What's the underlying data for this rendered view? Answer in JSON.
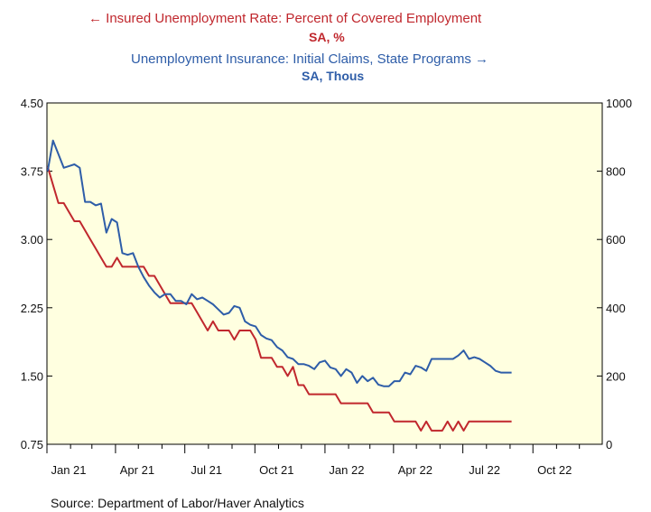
{
  "chart_data": {
    "type": "line",
    "legend": [
      {
        "label": "Insured Unemployment Rate: Percent of Covered Employment",
        "units": "SA, %",
        "axis": "left",
        "arrow": "left",
        "color": "#c0272d"
      },
      {
        "label": "Unemployment Insurance: Initial Claims, State Programs",
        "units": "SA, Thous",
        "axis": "right",
        "arrow": "right",
        "color": "#2e5da8"
      }
    ],
    "x_ticks": [
      "Jan 21",
      "Apr 21",
      "Jul 21",
      "Oct 21",
      "Jan 22",
      "Apr 22",
      "Jul 22",
      "Oct 22"
    ],
    "x_tick_dates": [
      "2021-01-01",
      "2021-04-01",
      "2021-07-01",
      "2021-10-01",
      "2022-01-01",
      "2022-04-01",
      "2022-07-01",
      "2022-10-01"
    ],
    "xlim": [
      "2021-01-01",
      "2022-12-31"
    ],
    "y_left": {
      "min": 0.75,
      "max": 4.5,
      "ticks": [
        "0.75",
        "1.50",
        "2.25",
        "3.00",
        "3.75",
        "4.50"
      ]
    },
    "y_right": {
      "min": 0,
      "max": 1000,
      "ticks": [
        "0",
        "200",
        "400",
        "600",
        "800",
        "1000"
      ]
    },
    "background": "#ffffe0",
    "grid": false,
    "series": [
      {
        "name": "Insured Unemployment Rate: Percent of Covered Employment",
        "axis": "left",
        "color": "#c0272d",
        "x": [
          "2021-01-02",
          "2021-01-09",
          "2021-01-16",
          "2021-01-23",
          "2021-01-30",
          "2021-02-06",
          "2021-02-13",
          "2021-02-20",
          "2021-02-27",
          "2021-03-06",
          "2021-03-13",
          "2021-03-20",
          "2021-03-27",
          "2021-04-03",
          "2021-04-10",
          "2021-04-17",
          "2021-04-24",
          "2021-05-01",
          "2021-05-08",
          "2021-05-15",
          "2021-05-22",
          "2021-05-29",
          "2021-06-05",
          "2021-06-12",
          "2021-06-19",
          "2021-06-26",
          "2021-07-03",
          "2021-07-10",
          "2021-07-17",
          "2021-07-24",
          "2021-07-31",
          "2021-08-07",
          "2021-08-14",
          "2021-08-21",
          "2021-08-28",
          "2021-09-04",
          "2021-09-11",
          "2021-09-18",
          "2021-09-25",
          "2021-10-02",
          "2021-10-09",
          "2021-10-16",
          "2021-10-23",
          "2021-10-30",
          "2021-11-06",
          "2021-11-13",
          "2021-11-20",
          "2021-11-27",
          "2021-12-04",
          "2021-12-11",
          "2021-12-18",
          "2021-12-25",
          "2022-01-01",
          "2022-01-08",
          "2022-01-15",
          "2022-01-22",
          "2022-01-29",
          "2022-02-05",
          "2022-02-12",
          "2022-02-19",
          "2022-02-26",
          "2022-03-05",
          "2022-03-12",
          "2022-03-19",
          "2022-03-26",
          "2022-04-02",
          "2022-04-09",
          "2022-04-16",
          "2022-04-23",
          "2022-04-30",
          "2022-05-07",
          "2022-05-14",
          "2022-05-21",
          "2022-05-28",
          "2022-06-04",
          "2022-06-11",
          "2022-06-18",
          "2022-06-25",
          "2022-07-02",
          "2022-07-09",
          "2022-07-16",
          "2022-07-23",
          "2022-07-30",
          "2022-08-06",
          "2022-08-13",
          "2022-08-20",
          "2022-08-27",
          "2022-09-03"
        ],
        "y": [
          3.8,
          3.6,
          3.4,
          3.4,
          3.3,
          3.2,
          3.2,
          3.1,
          3.0,
          2.9,
          2.8,
          2.7,
          2.7,
          2.8,
          2.7,
          2.7,
          2.7,
          2.7,
          2.7,
          2.6,
          2.6,
          2.5,
          2.4,
          2.3,
          2.3,
          2.3,
          2.3,
          2.3,
          2.2,
          2.1,
          2.0,
          2.1,
          2.0,
          2.0,
          2.0,
          1.9,
          2.0,
          2.0,
          2.0,
          1.9,
          1.7,
          1.7,
          1.7,
          1.6,
          1.6,
          1.5,
          1.6,
          1.4,
          1.4,
          1.3,
          1.3,
          1.3,
          1.3,
          1.3,
          1.3,
          1.2,
          1.2,
          1.2,
          1.2,
          1.2,
          1.2,
          1.1,
          1.1,
          1.1,
          1.1,
          1.0,
          1.0,
          1.0,
          1.0,
          1.0,
          0.9,
          1.0,
          0.9,
          0.9,
          0.9,
          1.0,
          0.9,
          1.0,
          0.9,
          1.0,
          1.0,
          1.0,
          1.0,
          1.0,
          1.0,
          1.0,
          1.0,
          1.0
        ]
      },
      {
        "name": "Unemployment Insurance: Initial Claims, State Programs",
        "axis": "right",
        "color": "#2e5da8",
        "x": [
          "2021-01-02",
          "2021-01-09",
          "2021-01-16",
          "2021-01-23",
          "2021-01-30",
          "2021-02-06",
          "2021-02-13",
          "2021-02-20",
          "2021-02-27",
          "2021-03-06",
          "2021-03-13",
          "2021-03-20",
          "2021-03-27",
          "2021-04-03",
          "2021-04-10",
          "2021-04-17",
          "2021-04-24",
          "2021-05-01",
          "2021-05-08",
          "2021-05-15",
          "2021-05-22",
          "2021-05-29",
          "2021-06-05",
          "2021-06-12",
          "2021-06-19",
          "2021-06-26",
          "2021-07-03",
          "2021-07-10",
          "2021-07-17",
          "2021-07-24",
          "2021-07-31",
          "2021-08-07",
          "2021-08-14",
          "2021-08-21",
          "2021-08-28",
          "2021-09-04",
          "2021-09-11",
          "2021-09-18",
          "2021-09-25",
          "2021-10-02",
          "2021-10-09",
          "2021-10-16",
          "2021-10-23",
          "2021-10-30",
          "2021-11-06",
          "2021-11-13",
          "2021-11-20",
          "2021-11-27",
          "2021-12-04",
          "2021-12-11",
          "2021-12-18",
          "2021-12-25",
          "2022-01-01",
          "2022-01-08",
          "2022-01-15",
          "2022-01-22",
          "2022-01-29",
          "2022-02-05",
          "2022-02-12",
          "2022-02-19",
          "2022-02-26",
          "2022-03-05",
          "2022-03-12",
          "2022-03-19",
          "2022-03-26",
          "2022-04-02",
          "2022-04-09",
          "2022-04-16",
          "2022-04-23",
          "2022-04-30",
          "2022-05-07",
          "2022-05-14",
          "2022-05-21",
          "2022-05-28",
          "2022-06-04",
          "2022-06-11",
          "2022-06-18",
          "2022-06-25",
          "2022-07-02",
          "2022-07-09",
          "2022-07-16",
          "2022-07-23",
          "2022-07-30",
          "2022-08-06",
          "2022-08-13",
          "2022-08-20",
          "2022-08-27",
          "2022-09-03"
        ],
        "y": [
          800,
          890,
          850,
          810,
          815,
          820,
          810,
          710,
          710,
          700,
          705,
          620,
          660,
          650,
          560,
          555,
          560,
          520,
          490,
          465,
          445,
          430,
          440,
          440,
          420,
          420,
          410,
          440,
          425,
          430,
          420,
          410,
          395,
          380,
          385,
          405,
          400,
          360,
          350,
          345,
          320,
          310,
          305,
          285,
          275,
          255,
          250,
          235,
          235,
          230,
          220,
          240,
          245,
          225,
          220,
          200,
          220,
          210,
          180,
          200,
          185,
          195,
          175,
          170,
          170,
          185,
          185,
          210,
          205,
          230,
          225,
          215,
          250,
          250,
          250,
          250,
          250,
          260,
          275,
          250,
          255,
          250,
          240,
          230,
          215,
          210,
          210,
          210
        ]
      }
    ]
  },
  "source_text": "Source:  Department of Labor/Haver Analytics"
}
